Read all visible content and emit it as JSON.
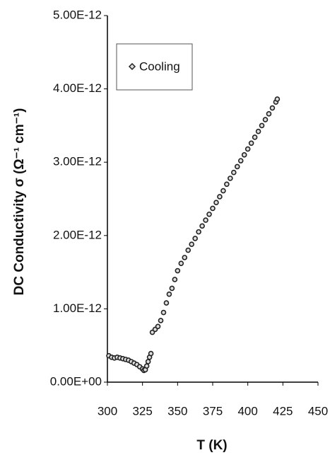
{
  "chart_data": {
    "type": "scatter",
    "x_label": "T (K)",
    "y_label": "DC Conductivity σ (Ω⁻¹ cm⁻¹)",
    "xlim": [
      300,
      450
    ],
    "xticks": [
      300,
      325,
      350,
      375,
      400,
      425,
      450
    ],
    "ylim": [
      0,
      5e-12
    ],
    "yticks": [
      {
        "value": 0,
        "label": "0.00E+00"
      },
      {
        "value": 1e-12,
        "label": "1.00E-12"
      },
      {
        "value": 2e-12,
        "label": "2.00E-12"
      },
      {
        "value": 3e-12,
        "label": "3.00E-12"
      },
      {
        "value": 4e-12,
        "label": "4.00E-12"
      },
      {
        "value": 5e-12,
        "label": "5.00E-12"
      }
    ],
    "legend": "upper-left",
    "series": [
      {
        "name": "Cooling",
        "color": "#222222",
        "x": [
          301,
          303,
          305,
          307,
          309,
          311,
          313,
          315,
          317,
          319,
          321,
          323,
          325,
          326,
          327,
          328,
          329,
          330,
          331,
          332,
          334,
          336,
          338,
          340,
          342,
          344,
          346,
          348,
          350,
          352.5,
          355,
          357.5,
          360,
          362.5,
          365,
          367.5,
          370,
          372.5,
          375,
          377.5,
          380,
          382.5,
          385,
          387.5,
          390,
          392.5,
          395,
          397.5,
          400,
          402.5,
          405,
          407.5,
          410,
          412.5,
          415,
          417.5,
          420,
          421
        ],
        "values": [
          3.6e-13,
          3.4e-13,
          3.3e-13,
          3.4e-13,
          3.3e-13,
          3.2e-13,
          3.1e-13,
          3e-13,
          2.8e-13,
          2.6e-13,
          2.4e-13,
          2.1e-13,
          1.8e-13,
          1.6e-13,
          1.7e-13,
          2.2e-13,
          2.8e-13,
          3.4e-13,
          3.9e-13,
          6.8e-13,
          7.2e-13,
          7.6e-13,
          8.4e-13,
          9.5e-13,
          1.08e-12,
          1.2e-12,
          1.28e-12,
          1.4e-12,
          1.52e-12,
          1.62e-12,
          1.7e-12,
          1.8e-12,
          1.88e-12,
          1.96e-12,
          2.05e-12,
          2.13e-12,
          2.21e-12,
          2.29e-12,
          2.37e-12,
          2.45e-12,
          2.53e-12,
          2.61e-12,
          2.7e-12,
          2.78e-12,
          2.86e-12,
          2.94e-12,
          3.02e-12,
          3.1e-12,
          3.18e-12,
          3.26e-12,
          3.34e-12,
          3.42e-12,
          3.5e-12,
          3.58e-12,
          3.66e-12,
          3.74e-12,
          3.82e-12,
          3.86e-12
        ]
      }
    ]
  }
}
